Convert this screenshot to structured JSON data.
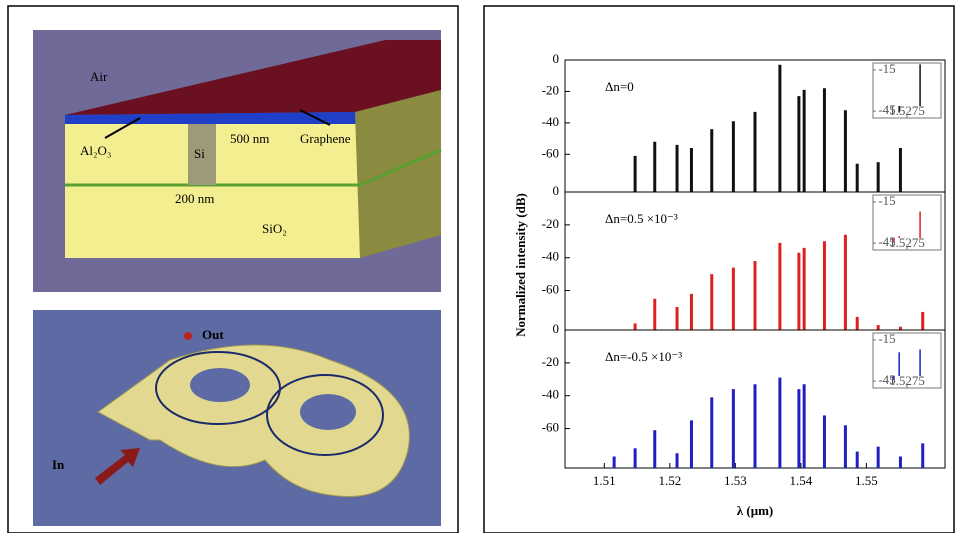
{
  "left_panel": {
    "top_labels": {
      "air": "Air",
      "graphene": "Graphene",
      "al2o3": "Al₂O₃",
      "si": "Si",
      "height": "500 nm",
      "width": "200 nm",
      "sio2": "SiO₂"
    },
    "bottom_labels": {
      "out": "Out",
      "in": "In"
    }
  },
  "y_label": "Normalized intensity (dB)",
  "x_label": "λ (μm)",
  "chart_data": [
    {
      "type": "bar",
      "annotation": "Δn=0",
      "color": "#111111",
      "x": [
        1.5147,
        1.5177,
        1.5211,
        1.5233,
        1.5264,
        1.5297,
        1.533,
        1.5368,
        1.5397,
        1.5405,
        1.5436,
        1.5468,
        1.5486,
        1.5518,
        1.5552
      ],
      "values": [
        -61,
        -52,
        -54,
        -56,
        -44,
        -39,
        -33,
        -3,
        -23,
        -19,
        -18,
        -32,
        -66,
        -65,
        -56
      ],
      "ylim": [
        -84,
        0
      ],
      "yticks": [
        -60,
        -40,
        -20,
        0
      ],
      "xlim": [
        1.504,
        1.562
      ],
      "inset": {
        "x": [
          1.527,
          1.5272,
          1.528
        ],
        "values": [
          -41,
          -46,
          -11
        ],
        "ylim": [
          -50,
          -10
        ],
        "yticks": [
          -15,
          -45
        ],
        "xlim": [
          1.5262,
          1.5288
        ],
        "xticks": [
          1.5275
        ]
      }
    },
    {
      "type": "bar",
      "annotation": "Δn=0.5 ×10⁻³",
      "color": "#e02020",
      "x": [
        1.5147,
        1.5177,
        1.5211,
        1.5233,
        1.5264,
        1.5297,
        1.533,
        1.5368,
        1.5397,
        1.5405,
        1.5436,
        1.5468,
        1.5486,
        1.5518,
        1.5552,
        1.5586
      ],
      "values": [
        -80,
        -65,
        -70,
        -62,
        -50,
        -46,
        -42,
        -31,
        -37,
        -34,
        -30,
        -26,
        -76,
        -81,
        -82,
        -73
      ],
      "ylim": [
        -84,
        0
      ],
      "yticks": [
        -60,
        -40,
        -20,
        0
      ],
      "xlim": [
        1.504,
        1.562
      ],
      "inset": {
        "x": [
          1.527,
          1.5272,
          1.528
        ],
        "values": [
          -44,
          -40,
          -22
        ],
        "ylim": [
          -50,
          -10
        ],
        "yticks": [
          -15,
          -45
        ],
        "xlim": [
          1.5262,
          1.5288
        ],
        "xticks": [
          1.5275
        ]
      }
    },
    {
      "type": "bar",
      "annotation": "Δn=-0.5 ×10⁻³",
      "color": "#2020c0",
      "x": [
        1.5115,
        1.5147,
        1.5177,
        1.5211,
        1.5233,
        1.5264,
        1.5297,
        1.533,
        1.5368,
        1.5397,
        1.5405,
        1.5436,
        1.5468,
        1.5486,
        1.5518,
        1.5552,
        1.5586
      ],
      "values": [
        -77,
        -72,
        -61,
        -75,
        -55,
        -41,
        -36,
        -33,
        -29,
        -36,
        -33,
        -52,
        -58,
        -74,
        -71,
        -77,
        -69
      ],
      "ylim": [
        -84,
        0
      ],
      "yticks": [
        -60,
        -40,
        -20,
        0
      ],
      "xlim": [
        1.504,
        1.562
      ],
      "xticks": [
        1.51,
        1.52,
        1.53,
        1.54,
        1.55
      ],
      "inset": {
        "x": [
          1.527,
          1.5272,
          1.528
        ],
        "values": [
          -44,
          -24,
          -22
        ],
        "ylim": [
          -50,
          -10
        ],
        "yticks": [
          -15,
          -45
        ],
        "xlim": [
          1.5262,
          1.5288
        ],
        "xticks": [
          1.5275
        ]
      }
    }
  ]
}
